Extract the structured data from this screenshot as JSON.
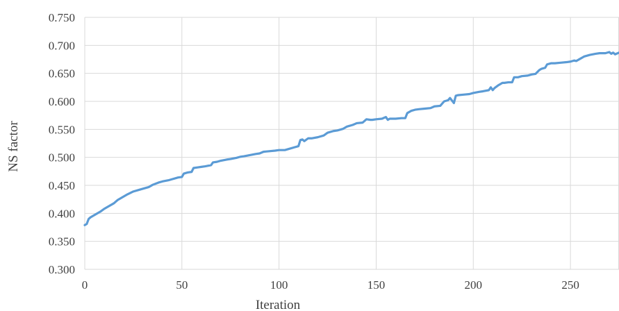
{
  "chart_data": {
    "type": "line",
    "title": "",
    "xlabel": "Iteration",
    "ylabel": "NS factor",
    "xlim": [
      0,
      275
    ],
    "ylim": [
      0.3,
      0.75
    ],
    "x_ticks": [
      "0",
      "50",
      "100",
      "150",
      "200",
      "250"
    ],
    "y_ticks": [
      "0.300",
      "0.350",
      "0.400",
      "0.450",
      "0.500",
      "0.550",
      "0.600",
      "0.650",
      "0.700",
      "0.750"
    ],
    "grid": true,
    "legend": "none",
    "series": [
      {
        "color": "#5b9bd5",
        "x": [
          0,
          1,
          2,
          3,
          5,
          8,
          10,
          12,
          15,
          17,
          20,
          22,
          25,
          28,
          30,
          33,
          35,
          38,
          40,
          43,
          45,
          48,
          50,
          51,
          53,
          55,
          56,
          58,
          60,
          62,
          65,
          66,
          68,
          70,
          73,
          75,
          78,
          80,
          82,
          85,
          88,
          90,
          92,
          95,
          98,
          100,
          103,
          105,
          108,
          110,
          111,
          112,
          113,
          115,
          117,
          120,
          123,
          125,
          128,
          130,
          133,
          135,
          138,
          140,
          143,
          145,
          147,
          148,
          150,
          153,
          155,
          156,
          157,
          160,
          163,
          165,
          166,
          168,
          170,
          172,
          175,
          178,
          180,
          183,
          185,
          187,
          188,
          190,
          191,
          192,
          195,
          198,
          200,
          203,
          205,
          208,
          209,
          210,
          211,
          213,
          215,
          216,
          218,
          220,
          221,
          223,
          225,
          228,
          230,
          232,
          234,
          235,
          237,
          238,
          240,
          242,
          245,
          248,
          250,
          252,
          253,
          255,
          257,
          260,
          263,
          265,
          268,
          270,
          271,
          272,
          273,
          275
        ],
        "values": [
          0.379,
          0.381,
          0.39,
          0.393,
          0.397,
          0.403,
          0.408,
          0.412,
          0.418,
          0.424,
          0.43,
          0.434,
          0.439,
          0.442,
          0.444,
          0.447,
          0.451,
          0.455,
          0.457,
          0.459,
          0.461,
          0.464,
          0.465,
          0.471,
          0.473,
          0.474,
          0.481,
          0.482,
          0.483,
          0.484,
          0.486,
          0.491,
          0.492,
          0.494,
          0.496,
          0.497,
          0.499,
          0.501,
          0.502,
          0.504,
          0.506,
          0.507,
          0.51,
          0.511,
          0.512,
          0.513,
          0.513,
          0.515,
          0.518,
          0.52,
          0.531,
          0.532,
          0.529,
          0.534,
          0.534,
          0.536,
          0.539,
          0.544,
          0.547,
          0.548,
          0.551,
          0.555,
          0.558,
          0.561,
          0.562,
          0.568,
          0.567,
          0.567,
          0.568,
          0.569,
          0.572,
          0.567,
          0.569,
          0.569,
          0.57,
          0.57,
          0.579,
          0.583,
          0.585,
          0.586,
          0.587,
          0.588,
          0.591,
          0.592,
          0.6,
          0.602,
          0.606,
          0.597,
          0.61,
          0.611,
          0.612,
          0.613,
          0.615,
          0.617,
          0.618,
          0.62,
          0.625,
          0.62,
          0.624,
          0.629,
          0.633,
          0.633,
          0.634,
          0.634,
          0.643,
          0.643,
          0.645,
          0.646,
          0.648,
          0.649,
          0.656,
          0.658,
          0.66,
          0.666,
          0.668,
          0.668,
          0.669,
          0.67,
          0.671,
          0.673,
          0.672,
          0.676,
          0.68,
          0.683,
          0.685,
          0.686,
          0.686,
          0.688,
          0.685,
          0.687,
          0.684,
          0.687
        ]
      }
    ]
  }
}
